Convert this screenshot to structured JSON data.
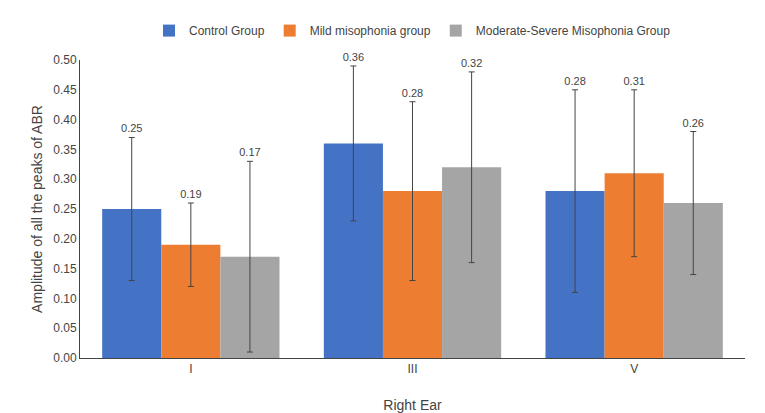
{
  "chart_data": {
    "type": "bar",
    "categories": [
      "I",
      "III",
      "V"
    ],
    "series": [
      {
        "name": "Control Group",
        "color": "#4472C4",
        "values": [
          0.25,
          0.36,
          0.28
        ],
        "errors": [
          0.12,
          0.13,
          0.17
        ]
      },
      {
        "name": "Mild misophonia group",
        "color": "#ED7D31",
        "values": [
          0.19,
          0.28,
          0.31
        ],
        "errors": [
          0.07,
          0.15,
          0.14
        ]
      },
      {
        "name": "Moderate-Severe Misophonia Group",
        "color": "#A5A5A5",
        "values": [
          0.17,
          0.32,
          0.26
        ],
        "errors": [
          0.16,
          0.16,
          0.12
        ]
      }
    ],
    "xlabel": "Right Ear",
    "ylabel": "Amplitude of all the peaks of ABR",
    "ylim": [
      0,
      0.5
    ],
    "yticks": [
      {
        "value": 0,
        "label": "0.00"
      },
      {
        "value": 0.05,
        "label": "0.05"
      },
      {
        "value": 0.1,
        "label": "0.10"
      },
      {
        "value": 0.15,
        "label": "0.15"
      },
      {
        "value": 0.2,
        "label": "0.20"
      },
      {
        "value": 0.25,
        "label": "0.25"
      },
      {
        "value": 0.3,
        "label": "0.30"
      },
      {
        "value": 0.35,
        "label": "0.35"
      },
      {
        "value": 0.4,
        "label": "0.40"
      },
      {
        "value": 0.45,
        "label": "0.45"
      },
      {
        "value": 0.5,
        "label": "0.50"
      }
    ],
    "grid": false,
    "legend": "top",
    "data_labels": true
  }
}
